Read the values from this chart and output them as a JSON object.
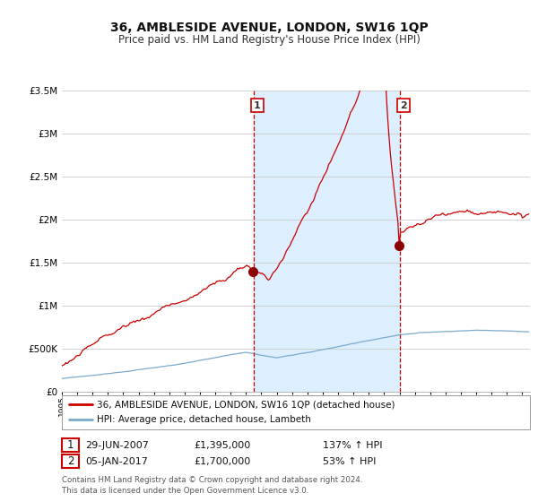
{
  "title": "36, AMBLESIDE AVENUE, LONDON, SW16 1QP",
  "subtitle": "Price paid vs. HM Land Registry's House Price Index (HPI)",
  "ylim": [
    0,
    3500000
  ],
  "xlim_start": 1995.0,
  "xlim_end": 2025.5,
  "red_line_color": "#cc0000",
  "blue_line_color": "#7aaacc",
  "shade_color": "#ddeeff",
  "marker1_date": 2007.49,
  "marker1_value": 1395000,
  "marker2_date": 2017.02,
  "marker2_value": 1700000,
  "vline1_x": 2007.49,
  "vline2_x": 2017.02,
  "legend_line1": "36, AMBLESIDE AVENUE, LONDON, SW16 1QP (detached house)",
  "legend_line2": "HPI: Average price, detached house, Lambeth",
  "annotation1_date": "29-JUN-2007",
  "annotation1_price": "£1,395,000",
  "annotation1_hpi": "137% ↑ HPI",
  "annotation2_date": "05-JAN-2017",
  "annotation2_price": "£1,700,000",
  "annotation2_hpi": "53% ↑ HPI",
  "footer": "Contains HM Land Registry data © Crown copyright and database right 2024.\nThis data is licensed under the Open Government Licence v3.0.",
  "background_color": "#ffffff",
  "grid_color": "#cccccc"
}
